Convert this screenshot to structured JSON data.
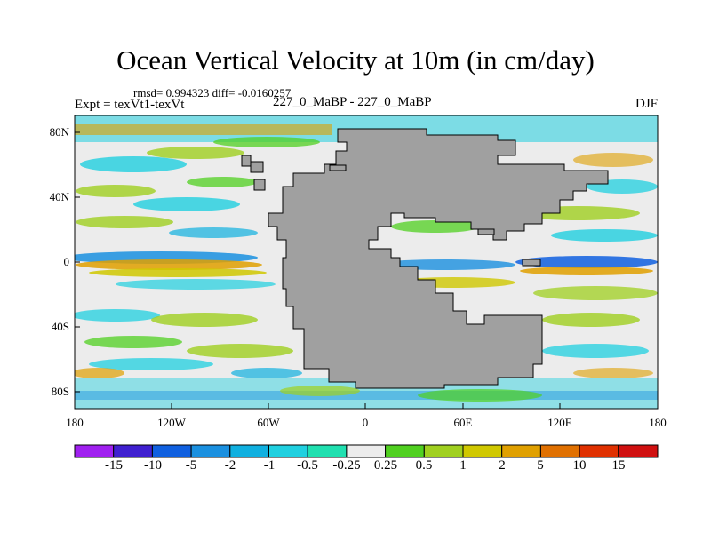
{
  "title": "Ocean Vertical Velocity at 10m (in cm/day)",
  "stats": "rmsd= 0.994323 diff= -0.0160257",
  "expt_label": "Expt = texVt1-texVt",
  "case_label": "227_0_MaBP - 227_0_MaBP",
  "season": "DJF",
  "map": {
    "land_color": "#a0a0a0",
    "y_ticks": [
      "80N",
      "40N",
      "0",
      "40S",
      "80S"
    ],
    "x_ticks": [
      "180",
      "120W",
      "60W",
      "0",
      "60E",
      "120E",
      "180"
    ]
  },
  "colorbar": {
    "labels": [
      "-15",
      "-10",
      "-5",
      "-2",
      "-1",
      "-0.5",
      "-0.25",
      "0.25",
      "0.5",
      "1",
      "2",
      "5",
      "10",
      "15"
    ],
    "colors": [
      "#a020f0",
      "#4020d0",
      "#1060e0",
      "#1a90e0",
      "#10b0e0",
      "#20d0e0",
      "#20e0b0",
      "#ececec",
      "#50d020",
      "#a0d020",
      "#d0c800",
      "#e0a000",
      "#e07000",
      "#e03000",
      "#d01010"
    ]
  }
}
